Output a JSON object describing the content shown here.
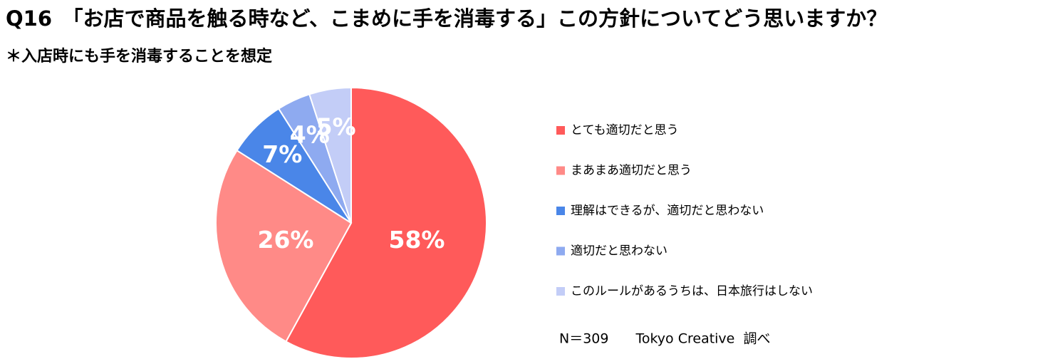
{
  "chart_data": {
    "type": "pie",
    "title": "Q16　「お店で商品を触る時など、こまめに手を消毒する」この方針についてどう思いますか？",
    "subtitle": "＊入店時にも手を消毒することを想定",
    "categories": [
      "とても適切だと思う",
      "まあまあ適切だと思う",
      "理解はできるが、適切だと思わない",
      "適切だと思わない",
      "このルールがあるうちは、日本旅行はしない"
    ],
    "values": [
      58,
      26,
      7,
      4,
      5
    ],
    "value_labels": [
      "58%",
      "26%",
      "7%",
      "4%",
      "5%"
    ],
    "colors": [
      "#ff5a5a",
      "#ff8a87",
      "#4a86e8",
      "#8eaaf0",
      "#c3cdf7"
    ],
    "note": "N＝309　　Tokyo Creative  調べ"
  }
}
